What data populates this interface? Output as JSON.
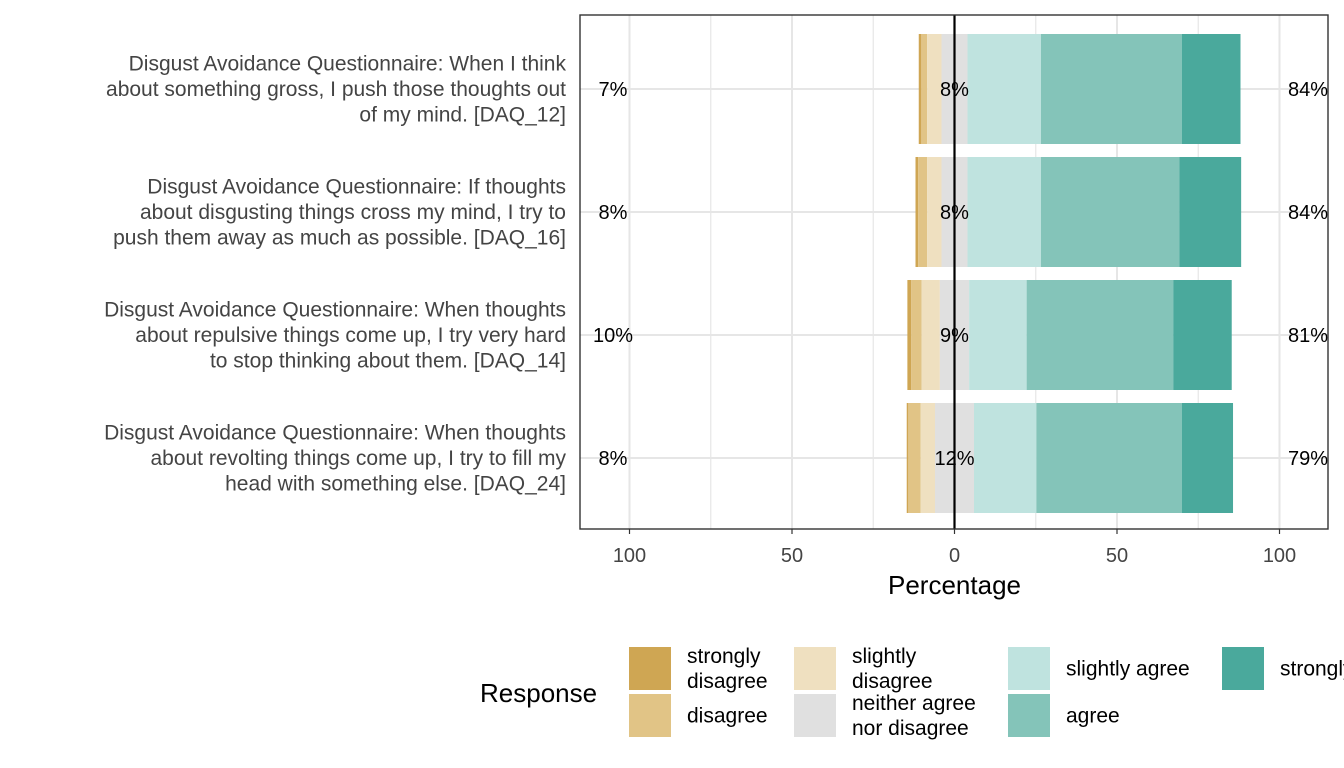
{
  "chart_data": {
    "type": "bar",
    "orientation": "horizontal",
    "stacked": "diverging",
    "xlabel": "Percentage",
    "xlim": [
      -100,
      100
    ],
    "xticks": [
      -100,
      -50,
      0,
      50,
      100
    ],
    "xtick_labels": [
      "100",
      "50",
      "0",
      "50",
      "100"
    ],
    "grid": true,
    "legend_title": "Response",
    "legend_position": "bottom",
    "levels": [
      {
        "key": "strongly_disagree",
        "label_lines": [
          "strongly",
          "disagree"
        ],
        "color": "#CFA653"
      },
      {
        "key": "disagree",
        "label_lines": [
          "disagree"
        ],
        "color": "#E1C486"
      },
      {
        "key": "slightly_disagree",
        "label_lines": [
          "slightly",
          "disagree"
        ],
        "color": "#EFE0C0"
      },
      {
        "key": "neutral",
        "label_lines": [
          "neither agree",
          "nor disagree"
        ],
        "color": "#E0E0E0"
      },
      {
        "key": "slightly_agree",
        "label_lines": [
          "slightly agree"
        ],
        "color": "#BFE3DF"
      },
      {
        "key": "agree",
        "label_lines": [
          "agree"
        ],
        "color": "#84C4B9"
      },
      {
        "key": "strongly_agree",
        "label_lines": [
          "strongly agree"
        ],
        "color": "#4AA99C"
      }
    ],
    "items": [
      {
        "label_lines": [
          "Disgust Avoidance Questionnaire: When I think",
          "about something gross, I push those thoughts out",
          "of my mind. [DAQ_12]"
        ],
        "values": [
          0.8,
          1.8,
          4.4,
          8,
          22.6,
          43.4,
          18
        ],
        "left_pct": "7%",
        "center_pct": "8%",
        "right_pct": "84%"
      },
      {
        "label_lines": [
          "Disgust Avoidance Questionnaire: If thoughts",
          "about disgusting things cross my mind, I try to",
          "push them away as much as possible. [DAQ_16]"
        ],
        "values": [
          0.8,
          2.8,
          4.4,
          8,
          22.6,
          42.6,
          19
        ],
        "left_pct": "8%",
        "center_pct": "8%",
        "right_pct": "84%"
      },
      {
        "label_lines": [
          "Disgust Avoidance Questionnaire: When thoughts",
          "about repulsive things come up, I try very hard",
          "to stop thinking about them. [DAQ_14]"
        ],
        "values": [
          1.2,
          3.2,
          5.6,
          9,
          17.7,
          45.1,
          18
        ],
        "left_pct": "10%",
        "center_pct": "9%",
        "right_pct": "81%"
      },
      {
        "label_lines": [
          "Disgust Avoidance Questionnaire: When thoughts",
          "about revolting things come up, I try to fill my",
          "head with something else. [DAQ_24]"
        ],
        "values": [
          0.5,
          3.8,
          4.4,
          12,
          19.2,
          44.8,
          15.7
        ],
        "left_pct": "8%",
        "center_pct": "12%",
        "right_pct": "79%"
      }
    ]
  }
}
